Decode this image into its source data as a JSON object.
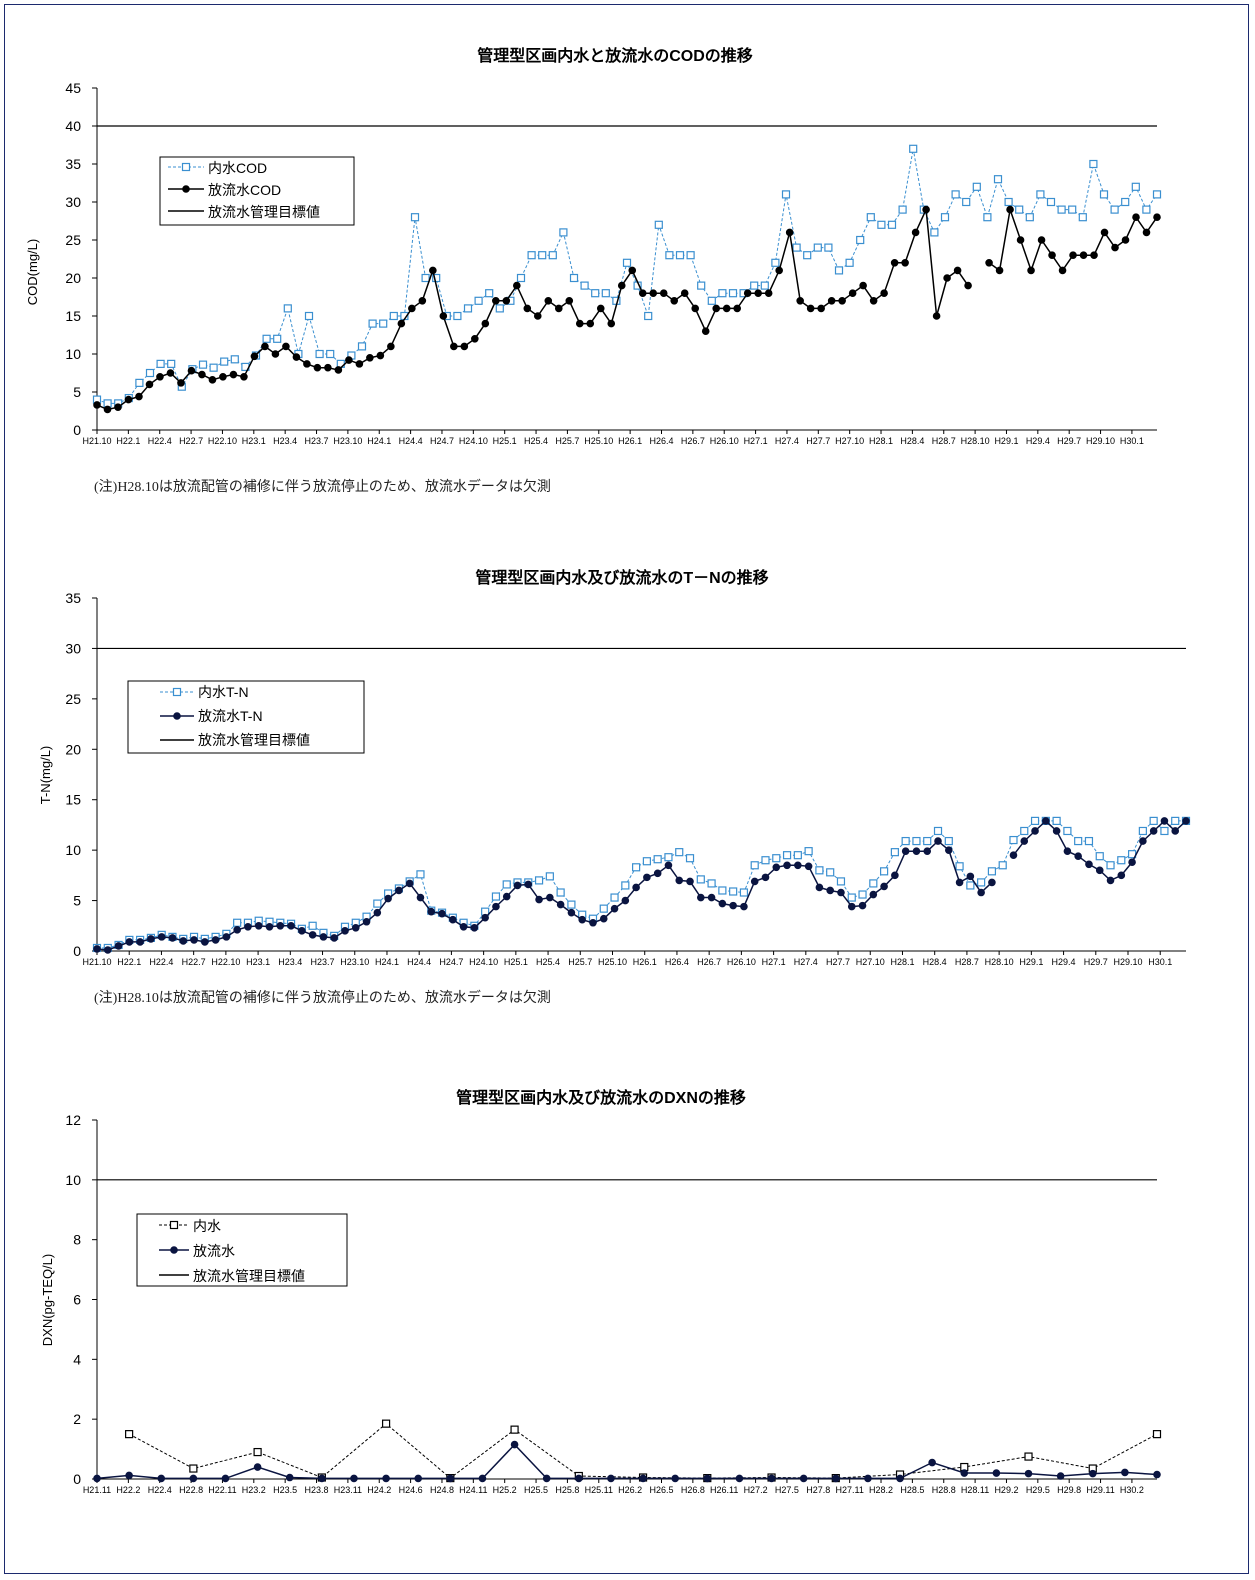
{
  "chart_data": [
    {
      "type": "line",
      "title": "管理型区画内水と放流水のCODの推移",
      "ylabel": "COD(mg/L)",
      "ylim": [
        0,
        45
      ],
      "yticks": [
        0,
        5,
        10,
        15,
        20,
        25,
        30,
        35,
        40,
        45
      ],
      "target_value": 40,
      "xtick_labels": [
        "H21.10",
        "H22.1",
        "H22.4",
        "H22.7",
        "H22.10",
        "H23.1",
        "H23.4",
        "H23.7",
        "H23.10",
        "H24.1",
        "H24.4",
        "H24.7",
        "H24.10",
        "H25.1",
        "H25.4",
        "H25.7",
        "H25.10",
        "H26.1",
        "H26.4",
        "H26.7",
        "H26.10",
        "H27.1",
        "H27.4",
        "H27.7",
        "H27.10",
        "H28.1",
        "H28.4",
        "H28.7",
        "H28.10",
        "H29.1",
        "H29.4",
        "H29.7",
        "H29.10",
        "H30.1"
      ],
      "series": [
        {
          "name": "内水COD",
          "color": "#3a8fd0",
          "marker": "square",
          "dash": true,
          "values": [
            4,
            3.5,
            3.5,
            4.2,
            6.2,
            7.5,
            8.7,
            8.7,
            5.7,
            8,
            8.6,
            8.2,
            9,
            9.3,
            8.3,
            9.8,
            12,
            12,
            16,
            10,
            15,
            10,
            10,
            8.7,
            9.8,
            11,
            14,
            14,
            15,
            15,
            28,
            20,
            20,
            15,
            15,
            16,
            17,
            18,
            16,
            17,
            20,
            23,
            23,
            23,
            26,
            20,
            19,
            18,
            18,
            17,
            22,
            19,
            15,
            27,
            23,
            23,
            23,
            19,
            17,
            18,
            18,
            18,
            19,
            19,
            22,
            31,
            24,
            23,
            24,
            24,
            21,
            22,
            25,
            28,
            27,
            27,
            29,
            37,
            29,
            26,
            28,
            31,
            30,
            32,
            28,
            33,
            30,
            29,
            28,
            31,
            30,
            29,
            29,
            28,
            35,
            31,
            29,
            30,
            32,
            29,
            31
          ]
        },
        {
          "name": "放流水COD",
          "color": "#000000",
          "marker": "circle",
          "dash": false,
          "values": [
            3.3,
            2.7,
            3,
            4,
            4.4,
            6,
            7,
            7.5,
            6.2,
            7.8,
            7.3,
            6.6,
            7,
            7.3,
            7,
            9.7,
            11,
            10,
            11,
            9.6,
            8.7,
            8.2,
            8.2,
            7.9,
            9.2,
            8.7,
            9.5,
            9.8,
            11,
            14,
            16,
            17,
            21,
            15,
            11,
            11,
            12,
            14,
            17,
            17,
            19,
            16,
            15,
            17,
            16,
            17,
            14,
            14,
            16,
            14,
            19,
            21,
            18,
            18,
            18,
            17,
            18,
            16,
            13,
            16,
            16,
            16,
            18,
            18,
            18,
            21,
            26,
            17,
            16,
            16,
            17,
            17,
            18,
            19,
            17,
            18,
            22,
            22,
            26,
            29,
            15,
            20,
            21,
            19,
            null,
            22,
            21,
            29,
            25,
            21,
            25,
            23,
            21,
            23,
            23,
            23,
            26,
            24,
            25,
            28,
            26,
            28
          ]
        },
        {
          "name": "放流水管理目標値",
          "color": "#000000",
          "marker": "none",
          "dash": false
        }
      ],
      "note": "(注)H28.10は放流配管の補修に伴う放流停止のため、放流水データは欠測"
    },
    {
      "type": "line",
      "title": "管理型区画内水及び放流水のT－Nの推移",
      "ylabel": "T-N(mg/L)",
      "ylim": [
        0,
        35
      ],
      "yticks": [
        0,
        5,
        10,
        15,
        20,
        25,
        30,
        35
      ],
      "target_value": 30,
      "xtick_labels": [
        "H21.10",
        "H22.1",
        "H22.4",
        "H22.7",
        "H22.10",
        "H23.1",
        "H23.4",
        "H23.7",
        "H23.10",
        "H24.1",
        "H24.4",
        "H24.7",
        "H24.10",
        "H25.1",
        "H25.4",
        "H25.7",
        "H25.10",
        "H26.1",
        "H26.4",
        "H26.7",
        "H26.10",
        "H27.1",
        "H27.4",
        "H27.7",
        "H27.10",
        "H28.1",
        "H28.4",
        "H28.7",
        "H28.10",
        "H29.1",
        "H29.4",
        "H29.7",
        "H29.10",
        "H30.1"
      ],
      "series": [
        {
          "name": "内水T-N",
          "color": "#3a8fd0",
          "marker": "square",
          "dash": true,
          "values": [
            0.3,
            0.3,
            0.6,
            1.1,
            1.1,
            1.3,
            1.6,
            1.4,
            1.2,
            1.4,
            1.2,
            1.4,
            1.7,
            2.8,
            2.8,
            3,
            2.9,
            2.8,
            2.7,
            2.2,
            2.5,
            1.8,
            1.5,
            2.4,
            2.8,
            3.4,
            4.7,
            5.7,
            6.2,
            6.9,
            7.6,
            4,
            3.8,
            3.3,
            2.8,
            2.5,
            3.9,
            5.4,
            6.6,
            6.8,
            6.8,
            7,
            7.4,
            5.8,
            4.6,
            3.6,
            3.2,
            4.2,
            5.3,
            6.5,
            8.3,
            8.9,
            9.1,
            9.3,
            9.8,
            9.2,
            7.1,
            6.7,
            6,
            5.9,
            5.8,
            8.5,
            9,
            9.2,
            9.5,
            9.5,
            9.9,
            8,
            7.8,
            6.9,
            5.3,
            5.6,
            6.7,
            7.9,
            9.8,
            10.9,
            10.9,
            10.9,
            11.9,
            10.9,
            8.4,
            6.5,
            6.8,
            7.9,
            8.5,
            11,
            11.9,
            12.9,
            12.9,
            12.9,
            11.9,
            10.9,
            10.9,
            9.4,
            8.5,
            9,
            9.6,
            11.9,
            12.9,
            11.9,
            12.9,
            12.9
          ]
        },
        {
          "name": "放流水T-N",
          "color": "#0a1440",
          "marker": "circle",
          "dash": false,
          "values": [
            0.2,
            0.1,
            0.5,
            0.9,
            0.9,
            1.2,
            1.4,
            1.3,
            1,
            1.1,
            0.9,
            1.1,
            1.4,
            2.1,
            2.4,
            2.5,
            2.4,
            2.5,
            2.5,
            2,
            1.6,
            1.4,
            1.3,
            2,
            2.3,
            2.9,
            3.8,
            5.2,
            6,
            6.7,
            5.3,
            3.9,
            3.7,
            3.1,
            2.4,
            2.3,
            3.3,
            4.4,
            5.4,
            6.5,
            6.6,
            5.1,
            5.3,
            4.6,
            3.8,
            3.1,
            2.8,
            3.2,
            4.2,
            5,
            6.3,
            7.3,
            7.7,
            8.5,
            7,
            6.9,
            5.3,
            5.3,
            4.7,
            4.5,
            4.4,
            6.9,
            7.3,
            8.3,
            8.5,
            8.5,
            8.4,
            6.3,
            6,
            5.8,
            4.4,
            4.5,
            5.6,
            6.4,
            7.5,
            9.9,
            9.9,
            9.9,
            10.9,
            10,
            6.8,
            7.4,
            5.8,
            6.8,
            null,
            9.5,
            10.9,
            11.9,
            12.9,
            11.9,
            9.9,
            9.4,
            8.6,
            8,
            7,
            7.5,
            8.8,
            10.9,
            11.9,
            12.9,
            11.9,
            12.9
          ]
        },
        {
          "name": "放流水管理目標値",
          "color": "#000000",
          "marker": "none",
          "dash": false
        }
      ],
      "note": "(注)H28.10は放流配管の補修に伴う放流停止のため、放流水データは欠測"
    },
    {
      "type": "line",
      "title": "管理型区画内水及び放流水のDXNの推移",
      "ylabel": "DXN(pg-TEQ/L)",
      "ylim": [
        0,
        12
      ],
      "yticks": [
        0,
        2,
        4,
        6,
        8,
        10,
        12
      ],
      "target_value": 10,
      "xtick_labels": [
        "H21.11",
        "H22.2",
        "H22.4",
        "H22.8",
        "H22.11",
        "H23.2",
        "H23.5",
        "H23.8",
        "H23.11",
        "H24.2",
        "H24.6",
        "H24.8",
        "H24.11",
        "H25.2",
        "H25.5",
        "H25.8",
        "H25.11",
        "H26.2",
        "H26.5",
        "H26.8",
        "H26.11",
        "H27.2",
        "H27.5",
        "H27.8",
        "H27.11",
        "H28.2",
        "H28.5",
        "H28.8",
        "H28.11",
        "H29.2",
        "H29.5",
        "H29.8",
        "H29.11",
        "H30.2"
      ],
      "series": [
        {
          "name": "内水",
          "color": "#000000",
          "marker": "square",
          "dash": true,
          "values": [
            null,
            1.5,
            null,
            0.35,
            null,
            0.9,
            null,
            0.05,
            null,
            1.85,
            null,
            0.03,
            null,
            1.65,
            null,
            0.1,
            null,
            0.05,
            null,
            0.03,
            null,
            0.05,
            null,
            0.03,
            null,
            0.15,
            null,
            0.4,
            null,
            0.75,
            null,
            0.35,
            null,
            1.5
          ]
        },
        {
          "name": "放流水",
          "color": "#0a1440",
          "marker": "circle",
          "dash": false,
          "values": [
            0.02,
            0.12,
            0.02,
            0.02,
            0.02,
            0.4,
            0.05,
            0.02,
            0.02,
            0.02,
            0.02,
            0.02,
            0.02,
            1.15,
            0.02,
            0.02,
            0.02,
            0.02,
            0.02,
            0.02,
            0.02,
            0.02,
            0.02,
            0.02,
            0.02,
            0.02,
            0.55,
            0.2,
            0.2,
            0.18,
            0.1,
            0.18,
            0.22,
            0.15
          ]
        },
        {
          "name": "放流水管理目標値",
          "color": "#000000",
          "marker": "none",
          "dash": false
        }
      ]
    }
  ]
}
